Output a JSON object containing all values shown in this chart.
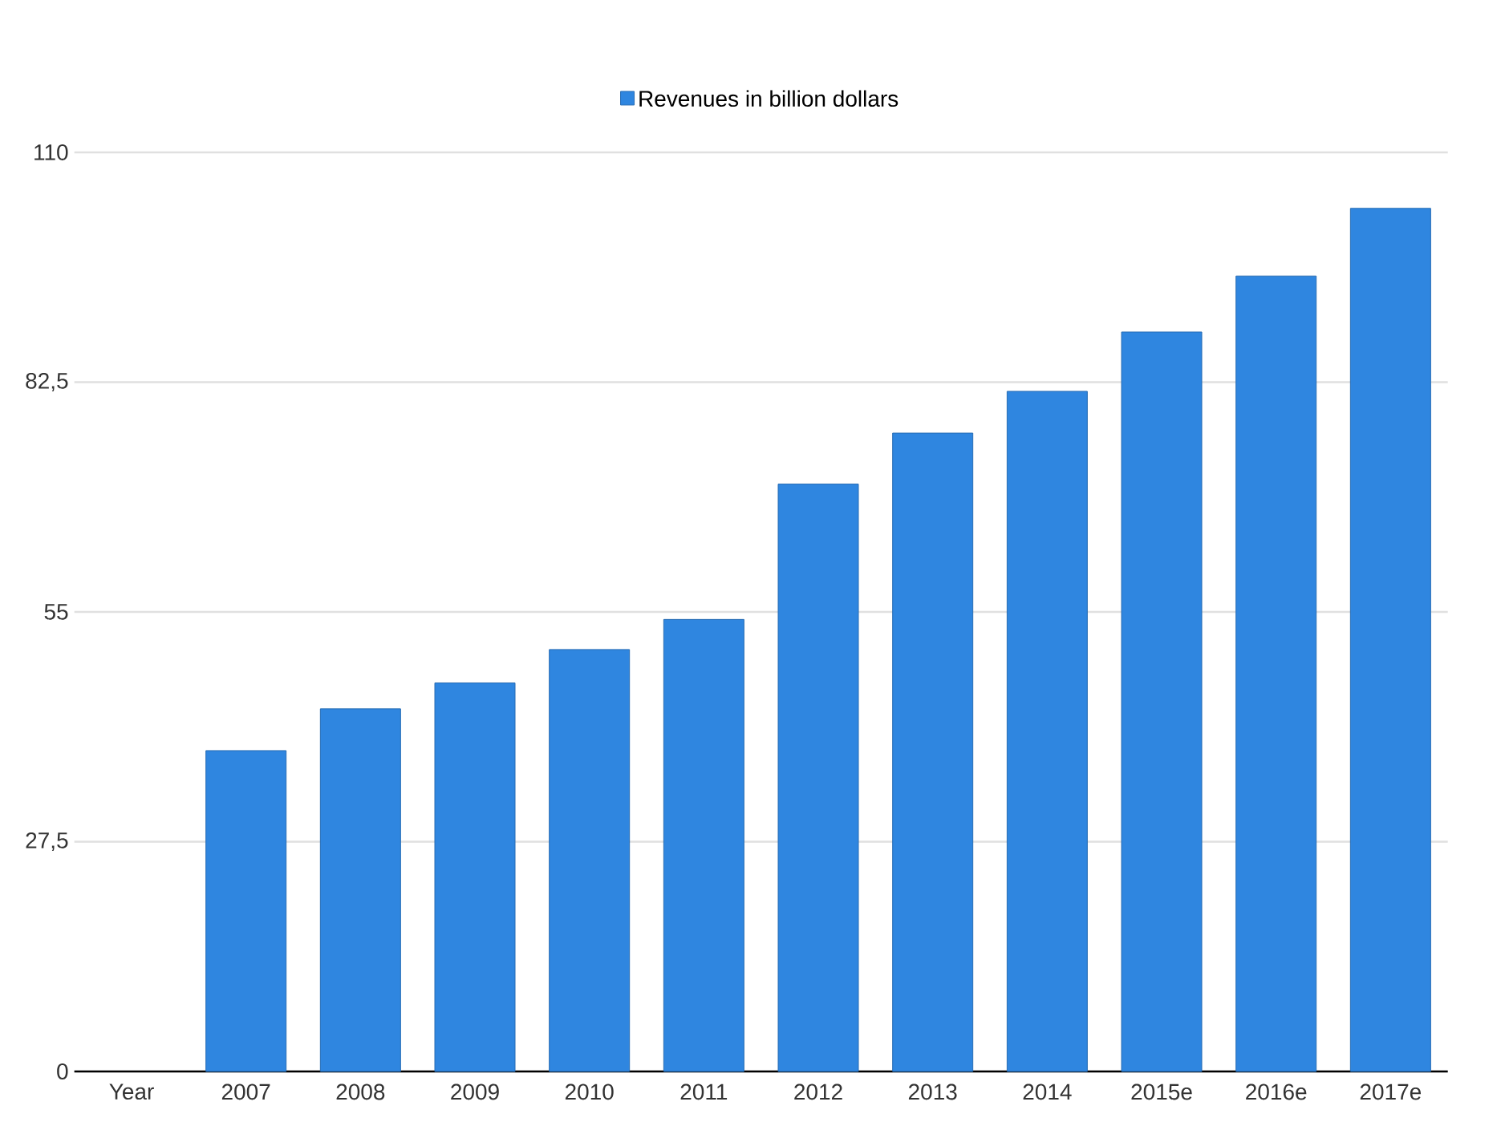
{
  "chart_data": {
    "type": "bar",
    "categories": [
      "Year",
      "2007",
      "2008",
      "2009",
      "2010",
      "2011",
      "2012",
      "2013",
      "2014",
      "2015e",
      "2016e",
      "2017e"
    ],
    "series": [
      {
        "name": "Revenues in billion dollars",
        "color": "#2f86e0",
        "values": [
          null,
          38.4,
          43.4,
          46.5,
          50.5,
          54.1,
          70.3,
          76.4,
          81.4,
          88.5,
          95.2,
          103.3
        ]
      }
    ],
    "ylim": [
      0,
      110
    ],
    "yticks": [
      0,
      {
        "value": 27.5,
        "label": "27,5"
      },
      55,
      {
        "value": 82.5,
        "label": "82,5"
      },
      110
    ],
    "grid": "y",
    "legend": "top"
  }
}
